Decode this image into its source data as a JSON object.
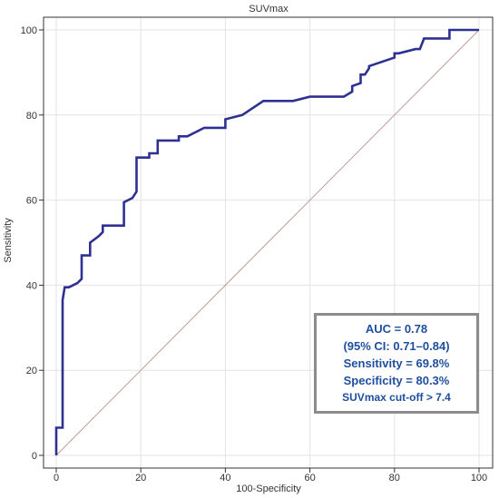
{
  "chart_data": {
    "type": "line",
    "title": "SUVmax",
    "xlabel": "100-Specificity",
    "ylabel": "Sensitivity",
    "xlim": [
      0,
      100
    ],
    "ylim": [
      0,
      100
    ],
    "xticks": [
      "0",
      "20",
      "40",
      "60",
      "80",
      "100"
    ],
    "yticks": [
      "0",
      "20",
      "40",
      "60",
      "80",
      "100"
    ],
    "grid": true,
    "series": [
      {
        "color": "#2e3192",
        "x": [
          0,
          0,
          1.5,
          1.5,
          2,
          3,
          5,
          6,
          6,
          8,
          8,
          10,
          11,
          11,
          16,
          16,
          18,
          19,
          19,
          22,
          22,
          24,
          24,
          29,
          29,
          31,
          35,
          40,
          40,
          44,
          49,
          56,
          60,
          64,
          68,
          70,
          70,
          72,
          72,
          73,
          74,
          74,
          77,
          77,
          80,
          80,
          81,
          85,
          86,
          87,
          93,
          93,
          100
        ],
        "y": [
          0,
          6.5,
          6.5,
          36.5,
          39.5,
          39.5,
          40.5,
          41.5,
          47,
          47,
          50,
          51.5,
          52.5,
          54,
          54,
          59.5,
          60.5,
          62,
          70,
          70,
          71,
          71,
          74,
          74,
          75,
          75,
          77,
          77,
          79,
          80,
          83.3,
          83.3,
          84.3,
          84.3,
          84.3,
          85.5,
          86.8,
          87.5,
          89.5,
          89.5,
          91,
          91.5,
          92.5,
          92.5,
          93.5,
          94.5,
          94.5,
          95.5,
          95.5,
          98,
          98,
          100,
          100
        ]
      },
      {
        "name": "Reference line",
        "color": "#c49a9a",
        "x": [
          0,
          100
        ],
        "y": [
          0,
          100
        ]
      }
    ]
  },
  "annotation": {
    "auc": "AUC = 0.78",
    "ci": "(95% CI: 0.71–0.84)",
    "sensitivity": "Sensitivity = 69.8%",
    "specificity": "Specificity = 80.3%",
    "cutoff": "SUVmax cut-off > 7.4"
  },
  "colors": {
    "curve": "#2e3192",
    "reference": "#c49a9a",
    "grid": "#e3e3e3",
    "axis": "#333333",
    "annotation_text": "#1f4e9e",
    "annotation_border": "#8c8c8c"
  }
}
